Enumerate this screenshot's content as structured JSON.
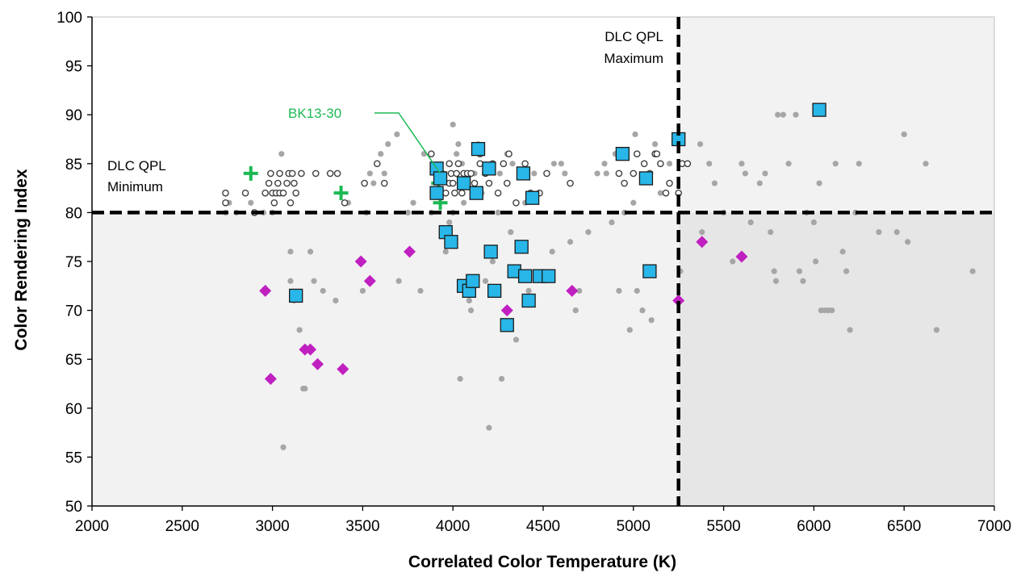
{
  "chart_data": {
    "type": "scatter",
    "xlabel": "Correlated Color Temperature (K)",
    "ylabel": "Color Rendering Index",
    "xlim": [
      2000,
      7000
    ],
    "ylim": [
      50,
      100
    ],
    "xticks": [
      "2000",
      "2500",
      "3000",
      "3500",
      "4000",
      "4500",
      "5000",
      "5500",
      "6000",
      "6500",
      "7000"
    ],
    "yticks": [
      "50",
      "55",
      "60",
      "65",
      "70",
      "75",
      "80",
      "85",
      "90",
      "95",
      "100"
    ],
    "grid": false,
    "legend": "none",
    "thresholds": {
      "cri_minimum": 80,
      "cct_maximum": 5250
    },
    "annotations": {
      "minimum_line1": "DLC QPL",
      "minimum_line2": "Minimum",
      "maximum_line1": "DLC QPL",
      "maximum_line2": "Maximum",
      "callout": "BK13-30",
      "callout_target": [
        3930,
        84
      ]
    },
    "colors": {
      "gray_points": "#a6a6a6",
      "open_points_edge": "#404040",
      "squares": "#29b6e8",
      "diamonds": "#c020c0",
      "crosses": "#1db954",
      "callout": "#1db954",
      "shade_light": "#f2f2f2",
      "shade_dark": "#e6e6e6"
    },
    "series": [
      {
        "marker": "gray-dot",
        "points": [
          [
            2740,
            80
          ],
          [
            2760,
            81
          ],
          [
            2800,
            80
          ],
          [
            2880,
            81
          ],
          [
            2950,
            80
          ],
          [
            3000,
            80
          ],
          [
            3050,
            86
          ],
          [
            3100,
            76
          ],
          [
            3100,
            73
          ],
          [
            3120,
            71
          ],
          [
            3150,
            68
          ],
          [
            3180,
            62
          ],
          [
            3210,
            76
          ],
          [
            3230,
            73
          ],
          [
            3280,
            72
          ],
          [
            3350,
            71
          ],
          [
            3420,
            81
          ],
          [
            3500,
            72
          ],
          [
            3520,
            80
          ],
          [
            3540,
            84
          ],
          [
            3600,
            86
          ],
          [
            3640,
            87
          ],
          [
            3690,
            88
          ],
          [
            3700,
            73
          ],
          [
            3750,
            80
          ],
          [
            3780,
            81
          ],
          [
            3820,
            72
          ],
          [
            3840,
            86
          ],
          [
            3880,
            80
          ],
          [
            3920,
            82
          ],
          [
            3950,
            82
          ],
          [
            3960,
            76
          ],
          [
            3980,
            79
          ],
          [
            4000,
            80
          ],
          [
            4000,
            89
          ],
          [
            4020,
            86
          ],
          [
            4030,
            87
          ],
          [
            4040,
            63
          ],
          [
            4050,
            85
          ],
          [
            4060,
            81
          ],
          [
            4080,
            83
          ],
          [
            4090,
            71
          ],
          [
            4100,
            70
          ],
          [
            4120,
            84
          ],
          [
            4160,
            82
          ],
          [
            4180,
            73
          ],
          [
            4200,
            58
          ],
          [
            4220,
            75
          ],
          [
            4250,
            80
          ],
          [
            4270,
            63
          ],
          [
            4300,
            86
          ],
          [
            4320,
            78
          ],
          [
            4350,
            67
          ],
          [
            4400,
            81
          ],
          [
            4420,
            72
          ],
          [
            4450,
            84
          ],
          [
            4480,
            82
          ],
          [
            4550,
            76
          ],
          [
            4600,
            85
          ],
          [
            4650,
            77
          ],
          [
            4680,
            70
          ],
          [
            4700,
            72
          ],
          [
            4750,
            78
          ],
          [
            4800,
            84
          ],
          [
            4850,
            84
          ],
          [
            4880,
            79
          ],
          [
            4900,
            86
          ],
          [
            4920,
            72
          ],
          [
            4950,
            80
          ],
          [
            4980,
            68
          ],
          [
            5000,
            81
          ],
          [
            5010,
            88
          ],
          [
            5020,
            72
          ],
          [
            5050,
            70
          ],
          [
            5100,
            69
          ],
          [
            5150,
            82
          ],
          [
            5200,
            85
          ],
          [
            5260,
            74
          ],
          [
            5300,
            85
          ],
          [
            5370,
            87
          ],
          [
            5380,
            78
          ],
          [
            5420,
            85
          ],
          [
            5450,
            83
          ],
          [
            5500,
            80
          ],
          [
            5550,
            75
          ],
          [
            5600,
            85
          ],
          [
            5620,
            84
          ],
          [
            5650,
            79
          ],
          [
            5700,
            83
          ],
          [
            5730,
            84
          ],
          [
            5760,
            78
          ],
          [
            5780,
            74
          ],
          [
            5790,
            73
          ],
          [
            5800,
            90
          ],
          [
            5830,
            90
          ],
          [
            5860,
            85
          ],
          [
            5900,
            90
          ],
          [
            5920,
            74
          ],
          [
            5940,
            73
          ],
          [
            5960,
            80
          ],
          [
            6000,
            79
          ],
          [
            6010,
            75
          ],
          [
            6030,
            83
          ],
          [
            6040,
            70
          ],
          [
            6060,
            70
          ],
          [
            6080,
            70
          ],
          [
            6100,
            70
          ],
          [
            6120,
            85
          ],
          [
            6160,
            76
          ],
          [
            6180,
            74
          ],
          [
            6200,
            68
          ],
          [
            6230,
            80
          ],
          [
            6250,
            85
          ],
          [
            6360,
            78
          ],
          [
            6460,
            78
          ],
          [
            6500,
            88
          ],
          [
            6520,
            77
          ],
          [
            6620,
            85
          ],
          [
            6680,
            68
          ],
          [
            6880,
            74
          ],
          [
            3060,
            56
          ],
          [
            3170,
            62
          ],
          [
            3560,
            83
          ],
          [
            3620,
            84
          ],
          [
            4140,
            87
          ],
          [
            4260,
            84
          ],
          [
            4330,
            85
          ],
          [
            4480,
            82
          ],
          [
            4560,
            85
          ],
          [
            4620,
            84
          ],
          [
            4840,
            85
          ],
          [
            5060,
            85
          ],
          [
            5120,
            87
          ]
        ]
      },
      {
        "marker": "open-circle",
        "points": [
          [
            2740,
            81
          ],
          [
            2740,
            82
          ],
          [
            2850,
            82
          ],
          [
            2900,
            80
          ],
          [
            2960,
            82
          ],
          [
            2980,
            83
          ],
          [
            3000,
            82
          ],
          [
            3010,
            81
          ],
          [
            3020,
            82
          ],
          [
            3030,
            83
          ],
          [
            3040,
            82
          ],
          [
            3060,
            82
          ],
          [
            3080,
            83
          ],
          [
            3090,
            84
          ],
          [
            3100,
            81
          ],
          [
            3110,
            84
          ],
          [
            3130,
            82
          ],
          [
            3160,
            84
          ],
          [
            3240,
            84
          ],
          [
            3320,
            84
          ],
          [
            3400,
            81
          ],
          [
            3510,
            83
          ],
          [
            3580,
            85
          ],
          [
            3620,
            83
          ],
          [
            3880,
            86
          ],
          [
            3900,
            82
          ],
          [
            3940,
            84
          ],
          [
            3960,
            82
          ],
          [
            3980,
            83
          ],
          [
            3990,
            84
          ],
          [
            4000,
            83
          ],
          [
            4010,
            82
          ],
          [
            4020,
            84
          ],
          [
            4040,
            83
          ],
          [
            4050,
            82
          ],
          [
            4060,
            84
          ],
          [
            4070,
            83
          ],
          [
            4080,
            84
          ],
          [
            4100,
            84
          ],
          [
            4120,
            83
          ],
          [
            4150,
            85
          ],
          [
            4180,
            84
          ],
          [
            4200,
            83
          ],
          [
            4220,
            85
          ],
          [
            4250,
            82
          ],
          [
            4280,
            85
          ],
          [
            4310,
            86
          ],
          [
            4350,
            81
          ],
          [
            4380,
            84
          ],
          [
            4400,
            85
          ],
          [
            4430,
            82
          ],
          [
            4480,
            82
          ],
          [
            4520,
            84
          ],
          [
            4650,
            83
          ],
          [
            4920,
            84
          ],
          [
            4950,
            83
          ],
          [
            5000,
            84
          ],
          [
            5020,
            86
          ],
          [
            5060,
            85
          ],
          [
            5090,
            84
          ],
          [
            5120,
            86
          ],
          [
            5150,
            85
          ],
          [
            5180,
            82
          ],
          [
            5200,
            83
          ],
          [
            5250,
            82
          ],
          [
            5270,
            85
          ],
          [
            5300,
            85
          ],
          [
            5130,
            86
          ],
          [
            4150,
            86
          ],
          [
            4030,
            85
          ],
          [
            3980,
            85
          ],
          [
            3040,
            84
          ],
          [
            2990,
            84
          ],
          [
            3120,
            83
          ],
          [
            3360,
            84
          ],
          [
            4300,
            83
          ]
        ]
      },
      {
        "marker": "blue-square",
        "points": [
          [
            3130,
            71.5
          ],
          [
            3910,
            84.5
          ],
          [
            3910,
            82
          ],
          [
            3930,
            83.5
          ],
          [
            3960,
            78
          ],
          [
            3990,
            77
          ],
          [
            4060,
            83
          ],
          [
            4060,
            72.5
          ],
          [
            4090,
            72
          ],
          [
            4110,
            73
          ],
          [
            4130,
            82
          ],
          [
            4140,
            86.5
          ],
          [
            4200,
            84.5
          ],
          [
            4210,
            76
          ],
          [
            4230,
            72
          ],
          [
            4300,
            68.5
          ],
          [
            4340,
            74
          ],
          [
            4380,
            76.5
          ],
          [
            4390,
            84
          ],
          [
            4400,
            73.5
          ],
          [
            4420,
            71
          ],
          [
            4440,
            81.5
          ],
          [
            4480,
            73.5
          ],
          [
            4530,
            73.5
          ],
          [
            4940,
            86
          ],
          [
            5070,
            83.5
          ],
          [
            5090,
            74
          ],
          [
            5250,
            87.5
          ],
          [
            6030,
            90.5
          ]
        ]
      },
      {
        "marker": "magenta-diamond",
        "points": [
          [
            2960,
            72
          ],
          [
            2990,
            63
          ],
          [
            3180,
            66
          ],
          [
            3210,
            66
          ],
          [
            3250,
            64.5
          ],
          [
            3390,
            64
          ],
          [
            3490,
            75
          ],
          [
            3540,
            73
          ],
          [
            3760,
            76
          ],
          [
            4300,
            70
          ],
          [
            4660,
            72
          ],
          [
            5250,
            71
          ],
          [
            5380,
            77
          ],
          [
            5600,
            75.5
          ]
        ]
      },
      {
        "marker": "green-cross",
        "points": [
          [
            2880,
            84
          ],
          [
            3380,
            82
          ],
          [
            3920,
            83
          ],
          [
            3930,
            81
          ]
        ]
      }
    ]
  }
}
